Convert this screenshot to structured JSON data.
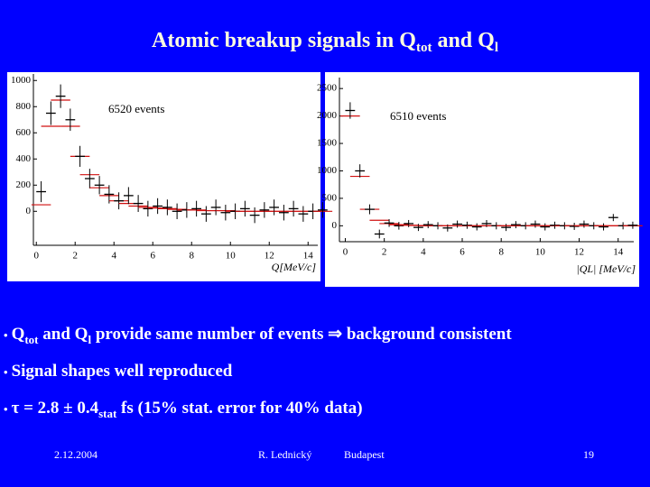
{
  "title": [
    "Atomic breakup signals in Q",
    "tot",
    "  and Q",
    "l"
  ],
  "bullets": [
    [
      "Q",
      "tot",
      " and Q",
      "l",
      " provide same number of events ⇒ background consistent"
    ],
    [
      "Signal shapes well reproduced"
    ],
    [
      "τ = 2.8 ± 0.4",
      "stat",
      " fs (15% stat. error for 40% data)"
    ]
  ],
  "footer": {
    "date": "2.12.2004",
    "author": "R. Lednický",
    "place": "Budapest",
    "page": "19"
  },
  "chart_data": [
    {
      "type": "errorbar",
      "annotation": "6520 events",
      "x_label": "Q[MeV/c]",
      "x": [
        0.25,
        0.75,
        1.25,
        1.75,
        2.25,
        2.75,
        3.25,
        3.75,
        4.25,
        4.75,
        5.25,
        5.75,
        6.25,
        6.75,
        7.25,
        7.75,
        8.25,
        8.75,
        9.25,
        9.75,
        10.25,
        10.75,
        11.25,
        11.75,
        12.25,
        12.75,
        13.25,
        13.75,
        14.25,
        14.75
      ],
      "values": [
        150,
        750,
        880,
        700,
        420,
        250,
        200,
        130,
        80,
        120,
        60,
        20,
        40,
        30,
        0,
        10,
        20,
        -20,
        30,
        -10,
        0,
        20,
        -30,
        10,
        30,
        -10,
        20,
        -20,
        0,
        10
      ],
      "errors": [
        80,
        90,
        90,
        85,
        80,
        75,
        70,
        70,
        65,
        65,
        65,
        60,
        60,
        60,
        60,
        60,
        60,
        60,
        60,
        60,
        60,
        60,
        60,
        60,
        60,
        60,
        60,
        60,
        60,
        60
      ],
      "fit": [
        50,
        650,
        850,
        650,
        420,
        280,
        180,
        120,
        80,
        60,
        40,
        30,
        25,
        20,
        15,
        10,
        10,
        5,
        5,
        5,
        0,
        0,
        0,
        0,
        0,
        0,
        0,
        0,
        0,
        0
      ],
      "color": "#000000",
      "fit_color": "#d01010",
      "xlim": [
        -0.15,
        14.5
      ],
      "ylim": [
        -260,
        1050
      ],
      "xticks": [
        0,
        2,
        4,
        6,
        8,
        10,
        12,
        14
      ],
      "yticks": [
        0,
        200,
        400,
        600,
        800,
        1000
      ]
    },
    {
      "type": "errorbar",
      "annotation": "6510 events",
      "x_label": "|QL| [MeV/c]",
      "x": [
        0.25,
        0.75,
        1.25,
        1.75,
        2.25,
        2.75,
        3.25,
        3.75,
        4.25,
        4.75,
        5.25,
        5.75,
        6.25,
        6.75,
        7.25,
        7.75,
        8.25,
        8.75,
        9.25,
        9.75,
        10.25,
        10.75,
        11.25,
        11.75,
        12.25,
        12.75,
        13.25,
        13.75,
        14.25,
        14.75
      ],
      "values": [
        2100,
        1000,
        300,
        -150,
        50,
        0,
        40,
        -30,
        20,
        0,
        -40,
        30,
        10,
        -20,
        40,
        0,
        -30,
        20,
        0,
        30,
        -20,
        10,
        0,
        -10,
        30,
        0,
        -20,
        150,
        0,
        10
      ],
      "errors": [
        150,
        120,
        90,
        80,
        70,
        70,
        65,
        65,
        65,
        65,
        65,
        65,
        65,
        65,
        65,
        65,
        65,
        65,
        65,
        65,
        65,
        65,
        65,
        65,
        65,
        65,
        65,
        65,
        65,
        65
      ],
      "fit": [
        2000,
        900,
        300,
        100,
        40,
        20,
        10,
        5,
        0,
        0,
        0,
        0,
        0,
        0,
        0,
        0,
        0,
        0,
        0,
        0,
        0,
        0,
        0,
        0,
        0,
        0,
        0,
        0,
        0,
        0
      ],
      "color": "#000000",
      "fit_color": "#d01010",
      "xlim": [
        -0.3,
        14.8
      ],
      "ylim": [
        -290,
        2700
      ],
      "xticks": [
        0,
        2,
        4,
        6,
        8,
        10,
        12,
        14
      ],
      "yticks": [
        0,
        500,
        1000,
        1500,
        2000,
        2500
      ]
    }
  ]
}
